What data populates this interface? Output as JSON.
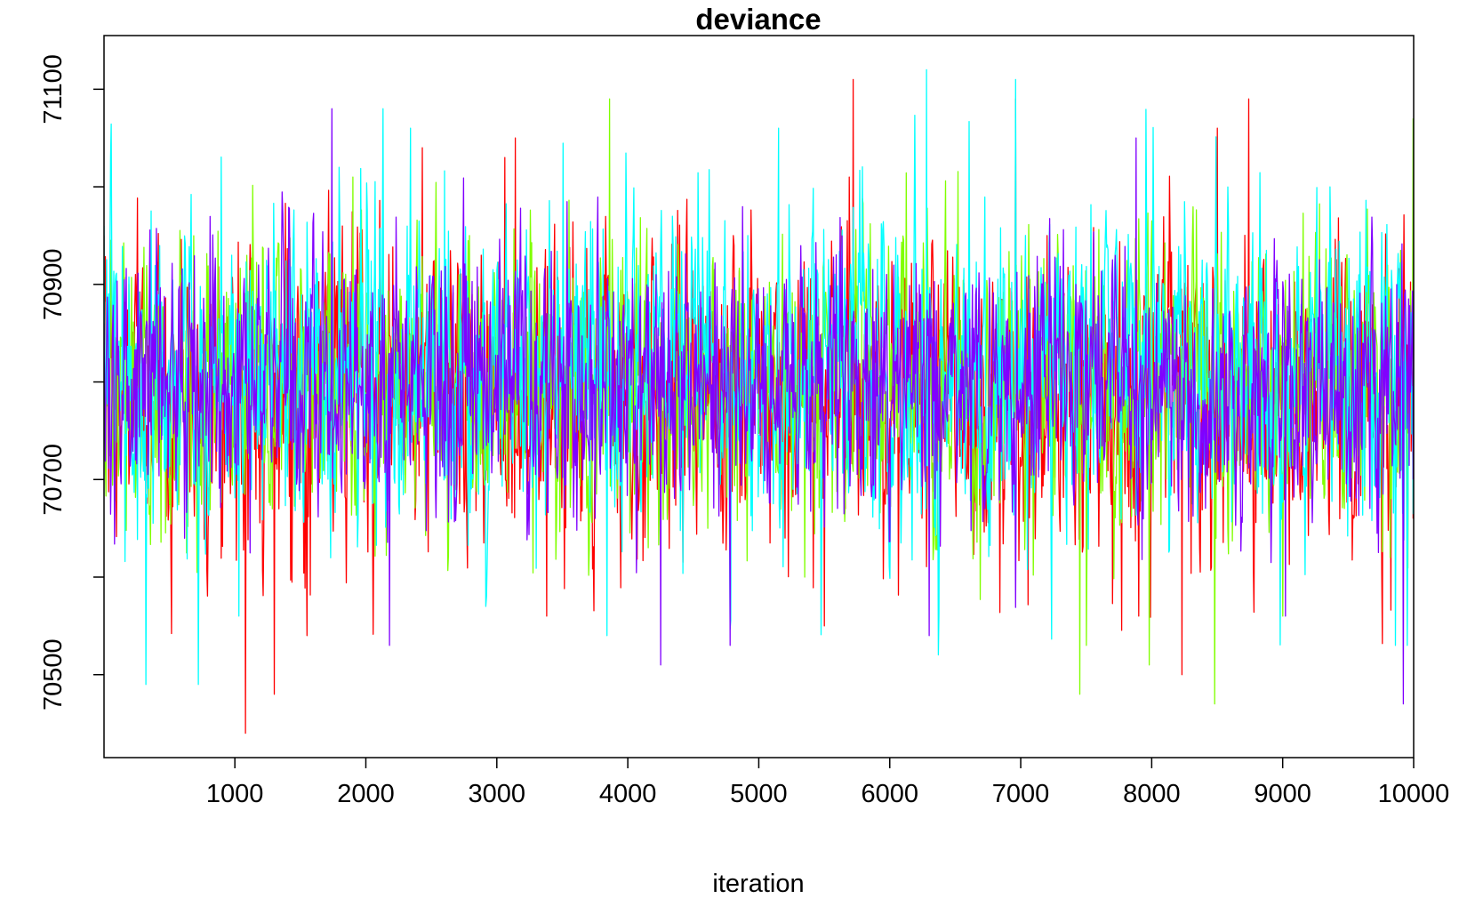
{
  "chart_data": {
    "type": "line",
    "title": "deviance",
    "xlabel": "iteration",
    "ylabel": "",
    "xlim": [
      1,
      10000
    ],
    "ylim": [
      70415,
      71155
    ],
    "x_ticks": [
      1000,
      2000,
      3000,
      4000,
      5000,
      6000,
      7000,
      8000,
      9000,
      10000
    ],
    "y_ticks": [
      70500,
      70700,
      70900,
      71100
    ],
    "y_minor_ticks": [
      70600,
      70800,
      71000
    ],
    "grid": false,
    "legend": "none",
    "series": [
      {
        "color": "#FF0000",
        "mean": 70790,
        "sd": 75,
        "points": [
          [
            1,
            70950
          ],
          [
            1080,
            70440
          ],
          [
            1300,
            70480
          ],
          [
            1550,
            70540
          ],
          [
            2430,
            71040
          ],
          [
            3060,
            71030
          ],
          [
            3140,
            71050
          ],
          [
            3380,
            70560
          ],
          [
            5200,
            70640
          ],
          [
            5500,
            70550
          ],
          [
            5690,
            71010
          ],
          [
            5720,
            71110
          ],
          [
            6960,
            71090
          ],
          [
            7200,
            70950
          ],
          [
            7900,
            70560
          ],
          [
            8230,
            70500
          ],
          [
            8500,
            71060
          ],
          [
            8740,
            71090
          ],
          [
            10000,
            70660
          ]
        ]
      },
      {
        "color": "#80FF00",
        "mean": 70800,
        "sd": 70,
        "points": [
          [
            1,
            70880
          ],
          [
            1900,
            71010
          ],
          [
            2130,
            70990
          ],
          [
            3600,
            70720
          ],
          [
            3860,
            71090
          ],
          [
            5350,
            70600
          ],
          [
            7450,
            70480
          ],
          [
            7500,
            70530
          ],
          [
            7980,
            70510
          ],
          [
            8480,
            70470
          ],
          [
            9000,
            70560
          ],
          [
            9820,
            70620
          ],
          [
            10000,
            71070
          ]
        ]
      },
      {
        "color": "#00FFFF",
        "mean": 70810,
        "sd": 80,
        "points": [
          [
            1,
            70960
          ],
          [
            320,
            70490
          ],
          [
            720,
            70490
          ],
          [
            1030,
            70560
          ],
          [
            2130,
            71080
          ],
          [
            2340,
            71060
          ],
          [
            3840,
            70540
          ],
          [
            5150,
            71060
          ],
          [
            6280,
            71120
          ],
          [
            6960,
            71110
          ],
          [
            9860,
            70530
          ],
          [
            9950,
            70530
          ]
        ]
      },
      {
        "color": "#8000FF",
        "mean": 70800,
        "sd": 65,
        "points": [
          [
            1,
            70860
          ],
          [
            1740,
            71080
          ],
          [
            2180,
            70530
          ],
          [
            4250,
            70510
          ],
          [
            4780,
            70530
          ],
          [
            6300,
            70540
          ],
          [
            7880,
            71050
          ],
          [
            9020,
            70560
          ],
          [
            9920,
            70470
          ],
          [
            10000,
            70700
          ]
        ]
      }
    ]
  }
}
